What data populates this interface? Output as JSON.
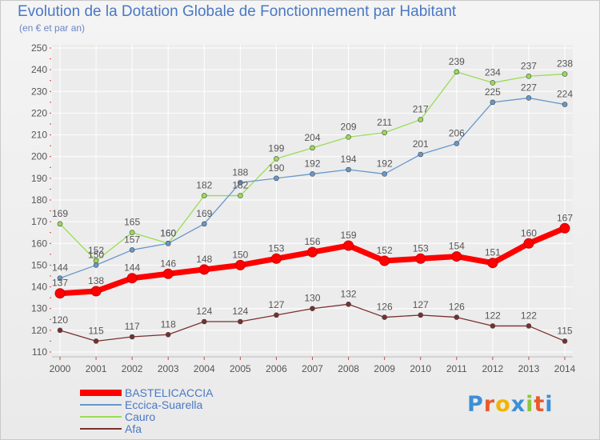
{
  "header": {
    "title": "Evolution de la Dotation Globale de Fonctionnement par Habitant",
    "subtitle": "(en € et par an)"
  },
  "logo": {
    "text": "Proxiti"
  },
  "colors": {
    "background": "#efefef",
    "grid": "#ffffff",
    "axis_text": "#555555",
    "label_text": "#555555"
  },
  "chart_data": {
    "type": "line",
    "title": "Evolution de la Dotation Globale de Fonctionnement par Habitant",
    "subtitle": "(en € et par an)",
    "xlabel": "",
    "ylabel": "",
    "x": [
      "2000",
      "2001",
      "2002",
      "2003",
      "2004",
      "2005",
      "2006",
      "2007",
      "2008",
      "2009",
      "2010",
      "2011",
      "2012",
      "2013",
      "2014"
    ],
    "y_ticks": [
      110,
      120,
      130,
      140,
      150,
      160,
      170,
      180,
      190,
      200,
      210,
      220,
      230,
      240,
      250
    ],
    "ylim": [
      110,
      250
    ],
    "grid": true,
    "legend_position": "bottom-left",
    "series": [
      {
        "name": "BASTELICACCIA",
        "color": "#ff0000",
        "values": [
          137,
          138,
          144,
          146,
          148,
          150,
          153,
          156,
          159,
          152,
          153,
          154,
          151,
          160,
          167
        ]
      },
      {
        "name": "Eccica-Suarella",
        "color": "#6699cc",
        "values": [
          144,
          150,
          157,
          160,
          169,
          188,
          190,
          192,
          194,
          192,
          201,
          206,
          225,
          227,
          224
        ]
      },
      {
        "name": "Cauro",
        "color": "#99dd55",
        "values": [
          169,
          152,
          165,
          160,
          182,
          182,
          199,
          204,
          209,
          211,
          217,
          239,
          234,
          237,
          238
        ]
      },
      {
        "name": "Afa",
        "color": "#7a2f2f",
        "values": [
          120,
          115,
          117,
          118,
          124,
          124,
          127,
          130,
          132,
          126,
          127,
          126,
          122,
          122,
          115
        ]
      }
    ]
  }
}
